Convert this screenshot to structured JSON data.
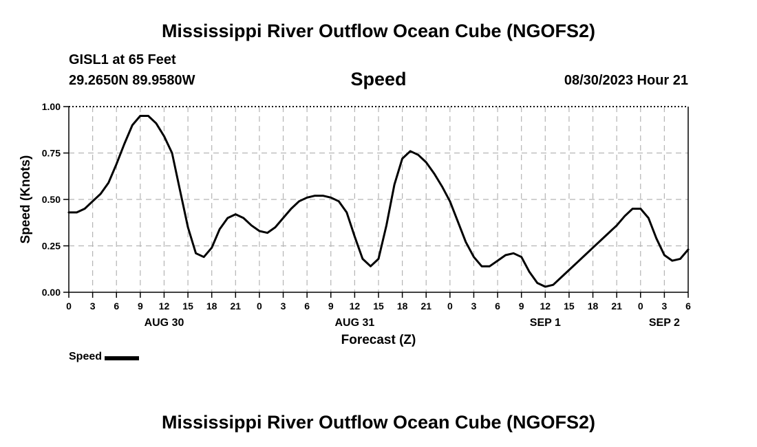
{
  "header": {
    "title": "Mississippi River Outflow Ocean Cube (NGOFS2)",
    "station": "GISL1 at 65 Feet",
    "coords": "29.2650N  89.9580W",
    "panel_title": "Speed",
    "datetime": "08/30/2023 Hour 21"
  },
  "footer": {
    "title": "Mississippi River Outflow Ocean Cube (NGOFS2)"
  },
  "legend": {
    "label": "Speed"
  },
  "chart_data": {
    "type": "line",
    "title": "Speed",
    "xlabel": "Forecast (Z)",
    "ylabel": "Speed (Knots)",
    "xlim": [
      0,
      78
    ],
    "ylim": [
      0,
      1
    ],
    "y_ticks": [
      0,
      0.25,
      0.5,
      0.75,
      1.0
    ],
    "y_tick_labels": [
      "0.00",
      "0.25",
      "0.50",
      "0.75",
      "1.00"
    ],
    "x_ticks": [
      0,
      3,
      6,
      9,
      12,
      15,
      18,
      21,
      24,
      27,
      30,
      33,
      36,
      39,
      42,
      45,
      48,
      51,
      54,
      57,
      60,
      63,
      66,
      69,
      72,
      75,
      78
    ],
    "x_tick_labels": [
      "0",
      "3",
      "6",
      "9",
      "12",
      "15",
      "18",
      "21",
      "0",
      "3",
      "6",
      "9",
      "12",
      "15",
      "18",
      "21",
      "0",
      "3",
      "6",
      "9",
      "12",
      "15",
      "18",
      "21",
      "0",
      "3",
      "6"
    ],
    "day_labels": [
      {
        "hour": 12,
        "label": "AUG 30"
      },
      {
        "hour": 36,
        "label": "AUG 31"
      },
      {
        "hour": 60,
        "label": "SEP 1"
      },
      {
        "hour": 75,
        "label": "SEP 2"
      }
    ],
    "grid": true,
    "series": [
      {
        "name": "Speed",
        "x": [
          0,
          1,
          2,
          3,
          4,
          5,
          6,
          7,
          8,
          9,
          10,
          11,
          12,
          13,
          14,
          15,
          16,
          17,
          18,
          19,
          20,
          21,
          22,
          23,
          24,
          25,
          26,
          27,
          28,
          29,
          30,
          31,
          32,
          33,
          34,
          35,
          36,
          37,
          38,
          39,
          40,
          41,
          42,
          43,
          44,
          45,
          46,
          47,
          48,
          49,
          50,
          51,
          52,
          53,
          54,
          55,
          56,
          57,
          58,
          59,
          60,
          61,
          62,
          63,
          64,
          65,
          66,
          67,
          68,
          69,
          70,
          71,
          72,
          73,
          74,
          75,
          76,
          77,
          78
        ],
        "values": [
          0.43,
          0.43,
          0.45,
          0.49,
          0.53,
          0.59,
          0.69,
          0.8,
          0.9,
          0.95,
          0.95,
          0.91,
          0.84,
          0.75,
          0.55,
          0.35,
          0.21,
          0.19,
          0.24,
          0.34,
          0.4,
          0.42,
          0.4,
          0.36,
          0.33,
          0.32,
          0.35,
          0.4,
          0.45,
          0.49,
          0.51,
          0.52,
          0.52,
          0.51,
          0.49,
          0.43,
          0.3,
          0.18,
          0.14,
          0.18,
          0.36,
          0.58,
          0.72,
          0.76,
          0.74,
          0.7,
          0.64,
          0.57,
          0.49,
          0.38,
          0.27,
          0.19,
          0.14,
          0.14,
          0.17,
          0.2,
          0.21,
          0.19,
          0.11,
          0.05,
          0.03,
          0.04,
          0.08,
          0.12,
          0.16,
          0.2,
          0.24,
          0.28,
          0.32,
          0.36,
          0.41,
          0.45,
          0.45,
          0.4,
          0.29,
          0.2,
          0.17,
          0.18,
          0.23
        ]
      }
    ]
  }
}
